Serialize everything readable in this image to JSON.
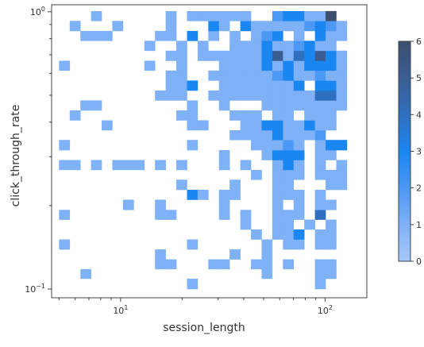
{
  "chart_data": {
    "type": "heatmap",
    "xlabel": "session_length",
    "ylabel": "click_through_rate",
    "xscale": "log",
    "yscale": "log",
    "xlim": [
      4.6,
      160
    ],
    "ylim": [
      0.093,
      1.06
    ],
    "x_ticks": [
      {
        "value": 10,
        "label": "10",
        "exp": "1"
      },
      {
        "value": 100,
        "label": "10",
        "exp": "2"
      }
    ],
    "y_ticks": [
      {
        "value": 0.1,
        "label": "10",
        "exp": "−1"
      },
      {
        "value": 1,
        "label": "10",
        "exp": "0"
      }
    ],
    "x_edges": [
      5.0,
      5.64,
      6.36,
      7.17,
      8.08,
      9.11,
      10.27,
      11.59,
      13.07,
      14.73,
      16.61,
      18.73,
      21.12,
      23.81,
      26.85,
      30.27,
      34.13,
      38.49,
      43.4,
      48.93,
      55.17,
      62.21,
      70.15,
      79.1,
      89.19,
      100.57,
      113.4,
      127.86
    ],
    "y_edges": [
      0.1,
      0.109,
      0.118,
      0.128,
      0.139,
      0.151,
      0.164,
      0.178,
      0.193,
      0.21,
      0.228,
      0.248,
      0.269,
      0.292,
      0.317,
      0.345,
      0.374,
      0.406,
      0.441,
      0.479,
      0.52,
      0.565,
      0.614,
      0.666,
      0.724,
      0.786,
      0.853,
      0.927,
      1.006
    ],
    "counts": [
      [
        0,
        0,
        0,
        0,
        0,
        0,
        0,
        0,
        0,
        0,
        0,
        0,
        1,
        0,
        0,
        0,
        0,
        0,
        0,
        0,
        0,
        0,
        0,
        0,
        1,
        0,
        0
      ],
      [
        0,
        0,
        1,
        0,
        0,
        0,
        0,
        0,
        0,
        0,
        0,
        0,
        0,
        0,
        0,
        0,
        0,
        0,
        0,
        1,
        0,
        0,
        0,
        0,
        1,
        1,
        0
      ],
      [
        0,
        0,
        0,
        0,
        0,
        0,
        0,
        0,
        0,
        1,
        1,
        0,
        0,
        0,
        1,
        1,
        0,
        0,
        1,
        1,
        0,
        1,
        0,
        0,
        1,
        1,
        0
      ],
      [
        0,
        0,
        0,
        0,
        0,
        0,
        0,
        0,
        0,
        1,
        0,
        0,
        0,
        0,
        0,
        0,
        1,
        0,
        0,
        1,
        0,
        0,
        0,
        0,
        0,
        0,
        0
      ],
      [
        1,
        0,
        0,
        0,
        0,
        0,
        0,
        0,
        0,
        0,
        0,
        0,
        1,
        0,
        0,
        0,
        0,
        0,
        0,
        1,
        0,
        1,
        1,
        0,
        1,
        1,
        0
      ],
      [
        0,
        0,
        0,
        0,
        0,
        0,
        0,
        0,
        0,
        0,
        0,
        0,
        0,
        0,
        0,
        0,
        0,
        0,
        1,
        0,
        1,
        1,
        3,
        0,
        1,
        1,
        0
      ],
      [
        0,
        0,
        0,
        0,
        0,
        0,
        0,
        0,
        0,
        0,
        0,
        0,
        0,
        0,
        0,
        0,
        0,
        1,
        0,
        0,
        1,
        1,
        0,
        1,
        0,
        1,
        0
      ],
      [
        1,
        0,
        0,
        0,
        0,
        0,
        0,
        0,
        0,
        1,
        1,
        0,
        0,
        0,
        0,
        1,
        0,
        1,
        0,
        0,
        1,
        1,
        1,
        0,
        4,
        0,
        0
      ],
      [
        0,
        0,
        0,
        0,
        0,
        0,
        1,
        0,
        0,
        1,
        0,
        0,
        0,
        0,
        0,
        1,
        0,
        0,
        0,
        0,
        1,
        0,
        1,
        0,
        1,
        1,
        0
      ],
      [
        0,
        0,
        0,
        0,
        0,
        0,
        0,
        0,
        0,
        0,
        0,
        0,
        3,
        1,
        0,
        1,
        1,
        0,
        0,
        0,
        1,
        1,
        1,
        0,
        1,
        0,
        0
      ],
      [
        0,
        0,
        0,
        0,
        0,
        0,
        0,
        0,
        0,
        0,
        0,
        1,
        0,
        0,
        0,
        0,
        1,
        0,
        0,
        0,
        1,
        1,
        0,
        0,
        0,
        1,
        1
      ],
      [
        0,
        0,
        0,
        0,
        0,
        0,
        0,
        0,
        0,
        0,
        0,
        0,
        0,
        0,
        0,
        0,
        0,
        0,
        1,
        0,
        1,
        1,
        1,
        0,
        1,
        1,
        1
      ],
      [
        1,
        1,
        0,
        1,
        0,
        1,
        1,
        1,
        0,
        1,
        0,
        1,
        0,
        0,
        0,
        1,
        0,
        1,
        0,
        0,
        1,
        3,
        1,
        0,
        1,
        0,
        1
      ],
      [
        0,
        0,
        0,
        0,
        0,
        0,
        0,
        0,
        0,
        0,
        0,
        0,
        0,
        0,
        0,
        1,
        0,
        0,
        0,
        1,
        3,
        3,
        3,
        0,
        1,
        1,
        0
      ],
      [
        1,
        0,
        0,
        0,
        0,
        0,
        0,
        0,
        0,
        0,
        0,
        0,
        1,
        0,
        0,
        0,
        0,
        0,
        1,
        1,
        1,
        2,
        1,
        0,
        1,
        3,
        3
      ],
      [
        0,
        0,
        0,
        0,
        0,
        0,
        0,
        0,
        0,
        0,
        0,
        0,
        0,
        0,
        0,
        0,
        1,
        1,
        1,
        1,
        3,
        1,
        1,
        1,
        2,
        0,
        0
      ],
      [
        0,
        0,
        0,
        0,
        1,
        0,
        0,
        0,
        0,
        0,
        0,
        0,
        1,
        1,
        0,
        0,
        0,
        1,
        1,
        3,
        3,
        1,
        1,
        3,
        1,
        1,
        0
      ],
      [
        0,
        1,
        0,
        0,
        0,
        0,
        0,
        0,
        0,
        0,
        0,
        1,
        1,
        0,
        0,
        0,
        1,
        1,
        1,
        0,
        1,
        1,
        0,
        1,
        1,
        1,
        0
      ],
      [
        0,
        0,
        1,
        1,
        0,
        0,
        0,
        0,
        0,
        0,
        0,
        0,
        1,
        0,
        0,
        1,
        0,
        0,
        0,
        1,
        1,
        1,
        1,
        1,
        1,
        1,
        1
      ],
      [
        0,
        0,
        0,
        0,
        0,
        0,
        0,
        0,
        0,
        1,
        1,
        1,
        0,
        0,
        1,
        1,
        1,
        1,
        1,
        1,
        1,
        1,
        1,
        1,
        4,
        4,
        1
      ],
      [
        0,
        0,
        0,
        0,
        0,
        0,
        0,
        0,
        0,
        0,
        1,
        1,
        3,
        0,
        0,
        1,
        1,
        1,
        1,
        1,
        1,
        1,
        3,
        0,
        3,
        3,
        1
      ],
      [
        0,
        0,
        0,
        0,
        0,
        0,
        0,
        0,
        0,
        0,
        1,
        1,
        0,
        0,
        1,
        1,
        1,
        1,
        1,
        1,
        2,
        3,
        1,
        1,
        2,
        1,
        1
      ],
      [
        1,
        0,
        0,
        0,
        0,
        0,
        0,
        0,
        1,
        0,
        0,
        1,
        0,
        0,
        0,
        1,
        1,
        1,
        1,
        3,
        1,
        3,
        1,
        3,
        3,
        3,
        1
      ],
      [
        0,
        0,
        0,
        0,
        0,
        0,
        0,
        0,
        0,
        0,
        1,
        1,
        0,
        1,
        1,
        1,
        1,
        1,
        1,
        3,
        5,
        1,
        4,
        3,
        5,
        3,
        1
      ],
      [
        0,
        0,
        0,
        0,
        0,
        0,
        0,
        0,
        1,
        0,
        0,
        1,
        0,
        1,
        0,
        0,
        1,
        1,
        1,
        3,
        1,
        1,
        2,
        3,
        1,
        1,
        0
      ],
      [
        0,
        0,
        1,
        1,
        1,
        0,
        0,
        0,
        0,
        1,
        1,
        0,
        3,
        0,
        1,
        0,
        1,
        0,
        1,
        2,
        3,
        0,
        1,
        0,
        3,
        1,
        1
      ],
      [
        0,
        1,
        0,
        0,
        0,
        1,
        0,
        0,
        0,
        0,
        1,
        0,
        0,
        0,
        3,
        1,
        0,
        3,
        1,
        1,
        1,
        1,
        1,
        2,
        3,
        2,
        1
      ],
      [
        0,
        0,
        0,
        1,
        0,
        0,
        0,
        0,
        0,
        0,
        1,
        0,
        1,
        1,
        1,
        1,
        1,
        1,
        0,
        0,
        2,
        3,
        3,
        1,
        1,
        6,
        0
      ]
    ],
    "colorbar": {
      "min": 0,
      "max": 6,
      "ticks": [
        0,
        1,
        2,
        3,
        4,
        5,
        6
      ],
      "colors": [
        "#a5c8f8",
        "#7fb1f7",
        "#4b98f5",
        "#1a86f2",
        "#2f6fc0",
        "#3a5d93",
        "#3c4f6f"
      ]
    },
    "grid": false,
    "legend": "colorbar right"
  }
}
